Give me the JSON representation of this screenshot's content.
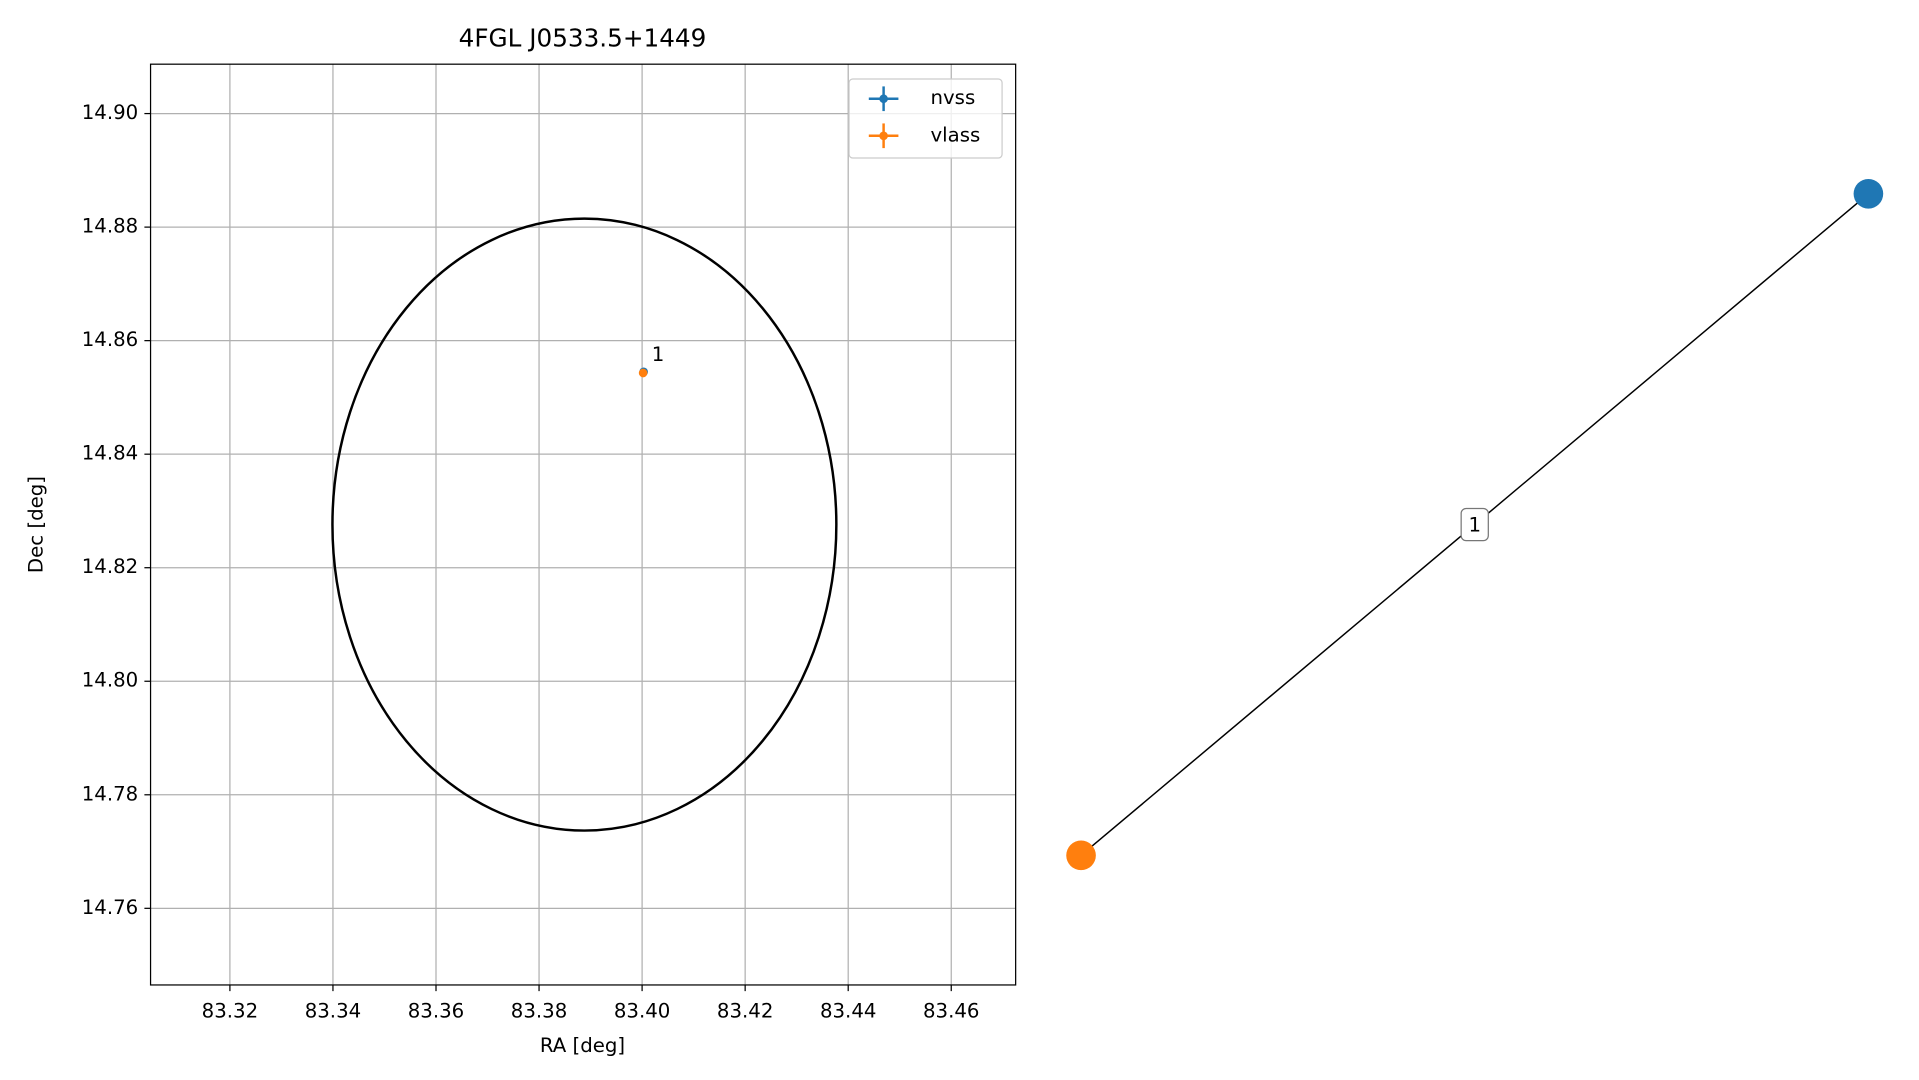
{
  "chart_data": [
    {
      "type": "scatter",
      "title": "4FGL J0533.5+1449",
      "x_label": "RA [deg]",
      "y_label": "Dec [deg]",
      "xlim": [
        83.3046,
        83.4725
      ],
      "ylim": [
        14.7465,
        14.9087
      ],
      "xticks": [
        {
          "value": 83.32,
          "label": "83.32"
        },
        {
          "value": 83.34,
          "label": "83.34"
        },
        {
          "value": 83.36,
          "label": "83.36"
        },
        {
          "value": 83.38,
          "label": "83.38"
        },
        {
          "value": 83.4,
          "label": "83.40"
        },
        {
          "value": 83.42,
          "label": "83.42"
        },
        {
          "value": 83.44,
          "label": "83.44"
        },
        {
          "value": 83.46,
          "label": "83.46"
        }
      ],
      "yticks": [
        {
          "value": 14.76,
          "label": "14.76"
        },
        {
          "value": 14.78,
          "label": "14.78"
        },
        {
          "value": 14.8,
          "label": "14.80"
        },
        {
          "value": 14.82,
          "label": "14.82"
        },
        {
          "value": 14.84,
          "label": "14.84"
        },
        {
          "value": 14.86,
          "label": "14.86"
        },
        {
          "value": 14.88,
          "label": "14.88"
        },
        {
          "value": 14.9,
          "label": "14.90"
        }
      ],
      "grid": true,
      "legend": "upper right",
      "ellipse": {
        "center": [
          83.3888,
          14.8276
        ],
        "rx": 0.0489,
        "ry": 0.0539,
        "color": "#000000"
      },
      "series": [
        {
          "name": "nvss",
          "color": "#1f77b4",
          "x": [
            83.4003
          ],
          "values": [
            14.8545
          ]
        },
        {
          "name": "vlass",
          "color": "#ff7f0e",
          "x": [
            83.4002
          ],
          "values": [
            14.8543
          ]
        }
      ],
      "annotations": [
        {
          "text": "1"
        }
      ]
    },
    {
      "type": "network",
      "nodes": [
        {
          "color": "#1f77b4"
        },
        {
          "color": "#ff7f0e"
        }
      ],
      "edges": [
        {
          "label": "1"
        }
      ]
    }
  ]
}
